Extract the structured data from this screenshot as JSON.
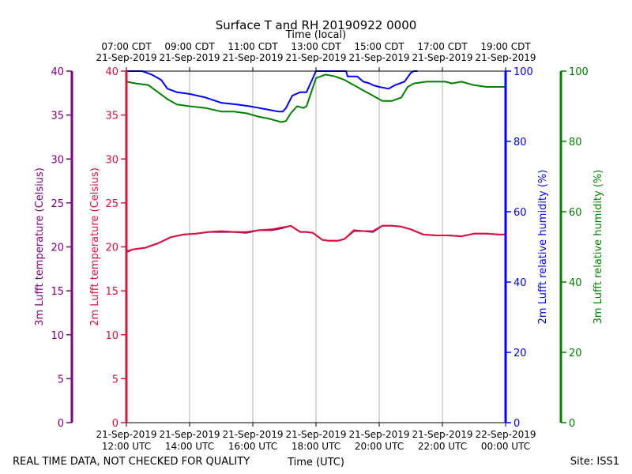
{
  "chart_data": {
    "type": "line",
    "title": "Surface T and RH 20190922 0000",
    "top_axis_label": "Time (local)",
    "xlabel": "Time (UTC)",
    "footer_left": "REAL TIME DATA, NOT CHECKED FOR QUALITY",
    "footer_right": "Site: ISS1",
    "x_range_hours_utc": [
      12,
      24
    ],
    "x_ticks_utc": [
      {
        "hour": 12,
        "line1": "21-Sep-2019",
        "line2": "12:00 UTC"
      },
      {
        "hour": 14,
        "line1": "21-Sep-2019",
        "line2": "14:00 UTC"
      },
      {
        "hour": 16,
        "line1": "21-Sep-2019",
        "line2": "16:00 UTC"
      },
      {
        "hour": 18,
        "line1": "21-Sep-2019",
        "line2": "18:00 UTC"
      },
      {
        "hour": 20,
        "line1": "21-Sep-2019",
        "line2": "20:00 UTC"
      },
      {
        "hour": 22,
        "line1": "21-Sep-2019",
        "line2": "22:00 UTC"
      },
      {
        "hour": 24,
        "line1": "22-Sep-2019",
        "line2": "00:00 UTC"
      }
    ],
    "x_ticks_local": [
      {
        "hour": 12,
        "line1": "07:00 CDT",
        "line2": "21-Sep-2019"
      },
      {
        "hour": 14,
        "line1": "09:00 CDT",
        "line2": "21-Sep-2019"
      },
      {
        "hour": 16,
        "line1": "11:00 CDT",
        "line2": "21-Sep-2019"
      },
      {
        "hour": 18,
        "line1": "13:00 CDT",
        "line2": "21-Sep-2019"
      },
      {
        "hour": 20,
        "line1": "15:00 CDT",
        "line2": "21-Sep-2019"
      },
      {
        "hour": 22,
        "line1": "17:00 CDT",
        "line2": "21-Sep-2019"
      },
      {
        "hour": 24,
        "line1": "19:00 CDT",
        "line2": "21-Sep-2019"
      }
    ],
    "axes": [
      {
        "id": "t3",
        "label": "3m Lufft temperature (Celsius)",
        "color": "#800080",
        "range": [
          0,
          40
        ],
        "ticks": [
          0,
          5,
          10,
          15,
          20,
          25,
          30,
          35,
          40
        ]
      },
      {
        "id": "t2",
        "label": "2m Lufft temperature (Celsius)",
        "color": "#dc143c",
        "range": [
          0,
          40
        ],
        "ticks": [
          0,
          5,
          10,
          15,
          20,
          25,
          30,
          35,
          40
        ]
      },
      {
        "id": "rh2",
        "label": "2m Lufft relative humidity (%)",
        "color": "#0000ff",
        "range": [
          0,
          100
        ],
        "ticks": [
          0,
          20,
          40,
          60,
          80,
          100
        ]
      },
      {
        "id": "rh3",
        "label": "3m Lufft relative humidity (%)",
        "color": "#008000",
        "range": [
          0,
          100
        ],
        "ticks": [
          0,
          20,
          40,
          60,
          80,
          100
        ]
      }
    ],
    "series": [
      {
        "name": "3m Lufft temperature",
        "axis": "t3",
        "color": "#800080",
        "x": [
          12.0,
          12.2,
          12.6,
          13.0,
          13.4,
          13.8,
          14.2,
          14.6,
          15.0,
          15.4,
          15.8,
          16.2,
          16.6,
          16.9,
          17.1,
          17.2,
          17.5,
          17.7,
          17.9,
          18.2,
          18.4,
          18.7,
          18.9,
          19.2,
          19.5,
          19.8,
          20.1,
          20.4,
          20.7,
          21.0,
          21.4,
          21.8,
          22.2,
          22.6,
          23.0,
          23.4,
          23.8,
          24.0
        ],
        "values": [
          19.4,
          19.7,
          19.9,
          20.4,
          21.1,
          21.4,
          21.5,
          21.7,
          21.7,
          21.7,
          21.6,
          21.9,
          21.9,
          22.1,
          22.3,
          22.4,
          21.7,
          21.7,
          21.6,
          20.8,
          20.7,
          20.7,
          20.9,
          21.8,
          21.8,
          21.7,
          22.4,
          22.4,
          22.3,
          22.0,
          21.4,
          21.3,
          21.3,
          21.2,
          21.5,
          21.5,
          21.4,
          21.4
        ]
      },
      {
        "name": "2m Lufft temperature",
        "axis": "t2",
        "color": "#dc143c",
        "x": [
          12.0,
          12.2,
          12.6,
          13.0,
          13.4,
          13.8,
          14.2,
          14.6,
          15.0,
          15.4,
          15.8,
          16.2,
          16.6,
          16.9,
          17.1,
          17.2,
          17.5,
          17.7,
          17.9,
          18.2,
          18.4,
          18.7,
          18.9,
          19.2,
          19.5,
          19.8,
          20.1,
          20.4,
          20.7,
          21.0,
          21.4,
          21.8,
          22.2,
          22.6,
          23.0,
          23.4,
          23.8,
          24.0
        ],
        "values": [
          19.5,
          19.7,
          19.9,
          20.4,
          21.1,
          21.4,
          21.5,
          21.7,
          21.8,
          21.7,
          21.7,
          21.9,
          22.0,
          22.2,
          22.3,
          22.4,
          21.7,
          21.7,
          21.6,
          20.8,
          20.7,
          20.7,
          20.9,
          21.9,
          21.8,
          21.8,
          22.4,
          22.4,
          22.3,
          22.0,
          21.4,
          21.3,
          21.3,
          21.2,
          21.5,
          21.5,
          21.4,
          21.4
        ]
      },
      {
        "name": "2m Lufft relative humidity",
        "axis": "rh2",
        "color": "#0000ff",
        "x": [
          12.0,
          12.5,
          12.8,
          13.1,
          13.3,
          13.6,
          14.0,
          14.5,
          15.0,
          15.5,
          15.9,
          16.2,
          16.5,
          16.8,
          16.95,
          17.05,
          17.25,
          17.5,
          17.7,
          17.85,
          17.95,
          18.0,
          18.5,
          18.95,
          19.0,
          19.3,
          19.5,
          19.7,
          19.8,
          20.0,
          20.3,
          20.5,
          20.8,
          21.0,
          21.1,
          21.2
        ],
        "values": [
          100.0,
          100.0,
          99.0,
          97.5,
          95.0,
          94.0,
          93.5,
          92.5,
          91.0,
          90.5,
          90.0,
          89.5,
          89.0,
          88.5,
          88.5,
          89.5,
          93.0,
          94.0,
          94.0,
          97.0,
          99.0,
          100.0,
          100.0,
          100.0,
          98.5,
          98.5,
          97.0,
          96.5,
          96.0,
          95.5,
          95.0,
          96.0,
          97.0,
          99.5,
          100.0,
          100.0
        ]
      },
      {
        "name": "3m Lufft relative humidity",
        "axis": "rh3",
        "color": "#008000",
        "x": [
          12.0,
          12.3,
          12.7,
          13.0,
          13.3,
          13.6,
          14.0,
          14.5,
          15.0,
          15.4,
          15.8,
          16.2,
          16.5,
          16.7,
          16.9,
          17.05,
          17.2,
          17.4,
          17.6,
          17.7,
          17.85,
          18.0,
          18.3,
          18.6,
          18.9,
          19.1,
          19.3,
          19.5,
          19.7,
          19.9,
          20.1,
          20.4,
          20.7,
          20.9,
          21.1,
          21.5,
          21.9,
          22.1,
          22.3,
          22.6,
          23.0,
          23.4,
          23.8,
          24.0
        ],
        "values": [
          97.0,
          96.5,
          96.0,
          94.0,
          92.0,
          90.5,
          90.0,
          89.5,
          88.5,
          88.5,
          88.0,
          87.0,
          86.5,
          86.0,
          85.5,
          85.8,
          88.0,
          90.0,
          89.5,
          90.0,
          94.0,
          98.0,
          99.0,
          98.5,
          97.5,
          96.5,
          95.5,
          94.5,
          93.5,
          92.5,
          91.5,
          91.5,
          92.5,
          95.5,
          96.5,
          97.0,
          97.0,
          97.0,
          96.5,
          97.0,
          96.0,
          95.5,
          95.5,
          95.5
        ]
      }
    ]
  }
}
